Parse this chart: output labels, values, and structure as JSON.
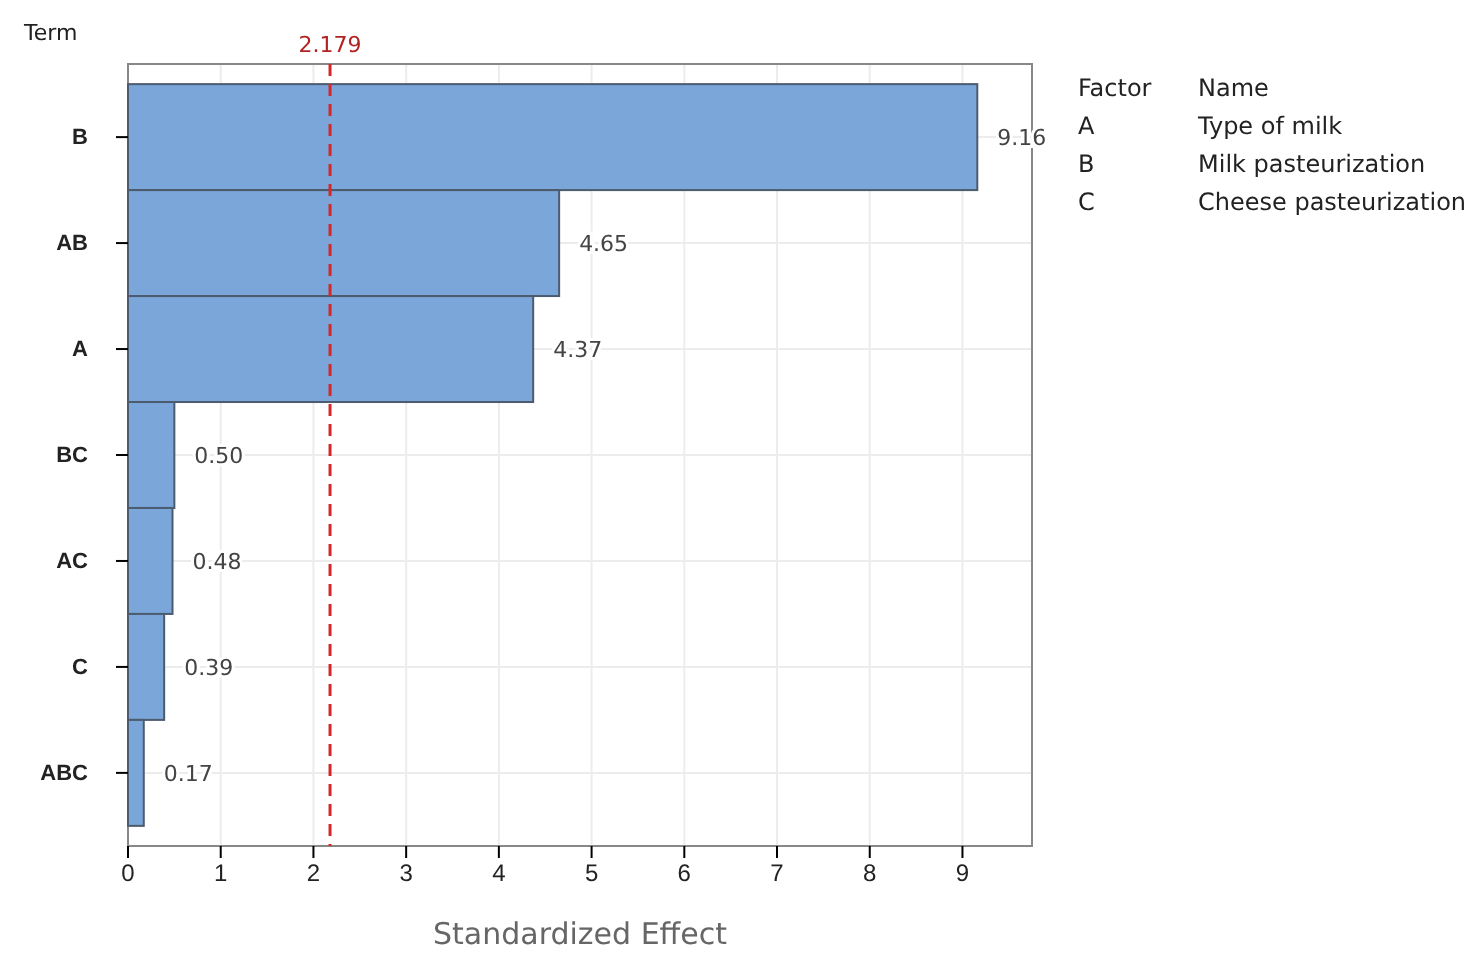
{
  "chart_data": {
    "type": "bar",
    "orientation": "horizontal",
    "xlabel": "Standardized Effect",
    "ylabel": "Term",
    "categories": [
      "B",
      "AB",
      "A",
      "BC",
      "AC",
      "C",
      "ABC"
    ],
    "values": [
      9.16,
      4.65,
      4.37,
      0.5,
      0.48,
      0.39,
      0.17
    ],
    "color": "#7aa6d9",
    "value_labels": [
      "9.16",
      "4.65",
      "4.37",
      "0.50",
      "0.48",
      "0.39",
      "0.17"
    ],
    "xlim": [
      0,
      9.75
    ],
    "xticks": [
      0,
      1,
      2,
      3,
      4,
      5,
      6,
      7,
      8,
      9
    ],
    "grid": true,
    "ref_lines": [
      {
        "axis": "x",
        "value": 2.179,
        "label": "2.179",
        "color": "#d62728",
        "line_style": "dashed"
      }
    ],
    "annotations": [
      "Factor",
      "Name",
      "A",
      "Type of milk",
      "B",
      "Milk pasteurization",
      "C",
      "Cheese pasteurization"
    ]
  }
}
